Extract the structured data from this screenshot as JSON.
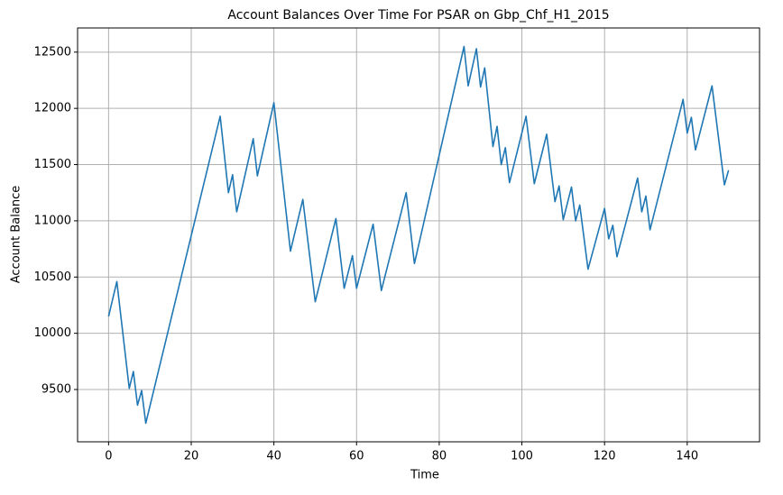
{
  "chart_data": {
    "type": "line",
    "title": "Account Balances Over Time For PSAR on Gbp_Chf_H1_2015",
    "x_label": "Time",
    "y_label": "Account Balance",
    "x": [
      0,
      2,
      5,
      6,
      7,
      8,
      9,
      27,
      29,
      30,
      31,
      35,
      36,
      40,
      44,
      47,
      50,
      55,
      57,
      59,
      60,
      64,
      66,
      72,
      74,
      86,
      87,
      89,
      90,
      91,
      93,
      94,
      95,
      96,
      97,
      101,
      103,
      106,
      108,
      109,
      110,
      112,
      113,
      114,
      116,
      120,
      121,
      122,
      123,
      128,
      129,
      130,
      131,
      139,
      140,
      141,
      142,
      146,
      149,
      150
    ],
    "series": [
      {
        "color": "#1f77b4",
        "values": [
          10150,
          10460,
          9510,
          9660,
          9360,
          9490,
          9200,
          11930,
          11250,
          11410,
          11080,
          11730,
          11400,
          12050,
          10730,
          11190,
          10280,
          11020,
          10400,
          10690,
          10400,
          10970,
          10380,
          11250,
          10620,
          12550,
          12200,
          12530,
          12190,
          12360,
          11660,
          11840,
          11500,
          11650,
          11340,
          11930,
          11330,
          11770,
          11170,
          11310,
          11010,
          11300,
          11000,
          11140,
          10570,
          11110,
          10840,
          10960,
          10680,
          11380,
          11080,
          11220,
          10920,
          12080,
          11780,
          11920,
          11630,
          12200,
          11320,
          11450
        ]
      }
    ],
    "xlim": [
      -7.5,
      157.5
    ],
    "ylim": [
      9035,
      12715
    ],
    "xticks": [
      0,
      20,
      40,
      60,
      80,
      100,
      120,
      140
    ],
    "yticks": [
      9500,
      10000,
      10500,
      11000,
      11500,
      12000,
      12500
    ],
    "grid": true
  }
}
